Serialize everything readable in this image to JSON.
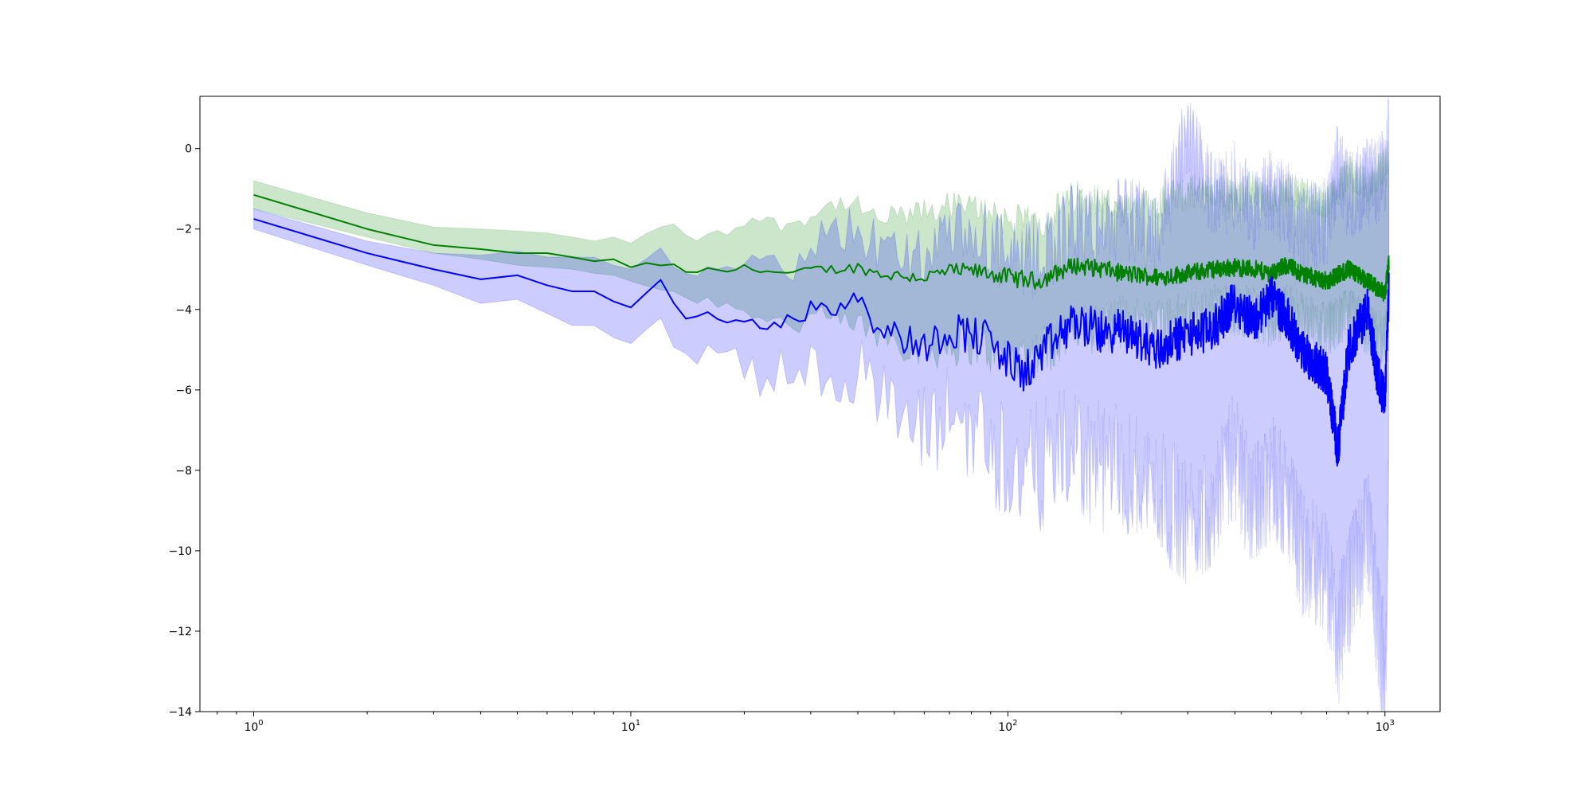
{
  "chart_data": {
    "type": "line",
    "title": "",
    "xlabel": "",
    "ylabel": "",
    "x_scale": "log",
    "xlim": [
      0.72,
      1400
    ],
    "ylim": [
      -14,
      1.3
    ],
    "grid": false,
    "legend": "none",
    "x_ticks": [
      {
        "value": 1,
        "base": "10",
        "exp": "0"
      },
      {
        "value": 10,
        "base": "10",
        "exp": "1"
      },
      {
        "value": 100,
        "base": "10",
        "exp": "2"
      },
      {
        "value": 1000,
        "base": "10",
        "exp": "3"
      }
    ],
    "y_ticks": [
      {
        "value": 0,
        "label": "0"
      },
      {
        "value": -2,
        "label": "−2"
      },
      {
        "value": -4,
        "label": "−4"
      },
      {
        "value": -6,
        "label": "−6"
      },
      {
        "value": -8,
        "label": "−8"
      },
      {
        "value": -10,
        "label": "−10"
      },
      {
        "value": -12,
        "label": "−12"
      },
      {
        "value": -14,
        "label": "−14"
      }
    ],
    "series": [
      {
        "color": "#008000",
        "band_color": "#008000",
        "band_opacity": 0.2,
        "x": [
          1,
          2,
          3,
          4,
          5,
          6,
          7,
          8,
          9,
          10,
          11,
          12,
          13,
          14,
          15,
          16,
          18,
          20,
          22,
          25,
          28,
          30,
          35,
          40,
          45,
          50,
          60,
          70,
          80,
          90,
          100,
          120,
          150,
          180,
          200,
          250,
          300,
          350,
          400,
          450,
          500,
          550,
          600,
          700,
          800,
          900,
          1000,
          1024
        ],
        "y": [
          -1.15,
          -2.0,
          -2.4,
          -2.5,
          -2.6,
          -2.6,
          -2.7,
          -2.8,
          -2.75,
          -2.95,
          -2.85,
          -2.9,
          -2.9,
          -3.05,
          -3.1,
          -3.0,
          -3.05,
          -2.95,
          -3.0,
          -3.1,
          -3.1,
          -3.0,
          -3.0,
          -2.95,
          -3.1,
          -3.15,
          -3.2,
          -3.05,
          -3.05,
          -3.1,
          -3.2,
          -3.3,
          -2.9,
          -3.0,
          -3.1,
          -3.2,
          -3.1,
          -3.0,
          -2.95,
          -3.0,
          -3.1,
          -2.9,
          -3.1,
          -3.3,
          -3.0,
          -3.3,
          -3.6,
          -2.8
        ],
        "band_lower": [
          -1.5,
          -2.2,
          -2.6,
          -2.75,
          -2.9,
          -2.95,
          -3.0,
          -3.1,
          -3.15,
          -3.3,
          -3.4,
          -3.5,
          -3.55,
          -3.7,
          -3.8,
          -3.75,
          -3.9,
          -4.0,
          -4.1,
          -4.3,
          -4.4,
          -4.2,
          -4.3,
          -4.4,
          -4.6,
          -4.7,
          -5.0,
          -4.9,
          -4.8,
          -5.0,
          -5.2,
          -5.1,
          -4.5,
          -4.4,
          -4.3,
          -4.3,
          -4.2,
          -4.0,
          -4.0,
          -4.1,
          -4.3,
          -4.0,
          -4.2,
          -4.5,
          -4.1,
          -4.5,
          -4.8,
          -3.9
        ],
        "band_upper": [
          -0.8,
          -1.6,
          -1.95,
          -2.0,
          -2.05,
          -2.1,
          -2.2,
          -2.3,
          -2.2,
          -2.35,
          -2.1,
          -1.95,
          -1.9,
          -2.2,
          -2.3,
          -2.05,
          -2.1,
          -1.8,
          -1.75,
          -1.9,
          -1.8,
          -1.65,
          -1.35,
          -1.45,
          -1.8,
          -1.7,
          -1.6,
          -1.4,
          -1.5,
          -1.5,
          -1.8,
          -1.9,
          -1.2,
          -1.3,
          -1.6,
          -1.3,
          -1.1,
          -1.0,
          -1.2,
          -0.95,
          -1.3,
          -1.0,
          -1.1,
          -1.4,
          -0.6,
          -0.9,
          -0.4,
          -0.1
        ]
      },
      {
        "color": "#0000ff",
        "band_color": "#0000ff",
        "band_opacity": 0.2,
        "x": [
          1,
          2,
          3,
          4,
          5,
          6,
          7,
          8,
          9,
          10,
          11,
          12,
          13,
          14,
          15,
          16,
          18,
          20,
          22,
          25,
          28,
          30,
          35,
          40,
          45,
          50,
          60,
          70,
          80,
          90,
          100,
          110,
          120,
          150,
          180,
          200,
          250,
          300,
          350,
          400,
          450,
          500,
          550,
          600,
          700,
          750,
          800,
          900,
          950,
          1000,
          1024
        ],
        "y": [
          -1.75,
          -2.6,
          -3.0,
          -3.25,
          -3.15,
          -3.4,
          -3.55,
          -3.55,
          -3.8,
          -3.95,
          -3.6,
          -3.25,
          -3.85,
          -4.2,
          -4.25,
          -4.1,
          -4.25,
          -4.15,
          -4.4,
          -4.3,
          -4.35,
          -3.85,
          -3.95,
          -3.6,
          -4.4,
          -4.6,
          -4.95,
          -4.5,
          -4.6,
          -4.8,
          -5.3,
          -5.6,
          -5.2,
          -4.3,
          -4.6,
          -4.5,
          -5.0,
          -4.6,
          -4.5,
          -3.8,
          -4.3,
          -3.7,
          -4.2,
          -5.0,
          -5.6,
          -7.5,
          -5.0,
          -4.0,
          -5.5,
          -6.3,
          -3.6
        ],
        "band_lower": [
          -2.0,
          -2.9,
          -3.4,
          -3.85,
          -3.75,
          -4.1,
          -4.4,
          -4.4,
          -4.7,
          -4.85,
          -4.5,
          -4.1,
          -4.8,
          -5.1,
          -5.2,
          -5.15,
          -5.35,
          -5.4,
          -5.75,
          -5.6,
          -5.6,
          -5.45,
          -5.65,
          -5.3,
          -6.3,
          -6.6,
          -7.2,
          -6.6,
          -6.9,
          -7.3,
          -7.8,
          -8.2,
          -7.9,
          -7.5,
          -8.0,
          -7.9,
          -8.5,
          -9.3,
          -8.8,
          -7.6,
          -9.0,
          -8.0,
          -8.8,
          -10.0,
          -10.5,
          -12.3,
          -11.0,
          -9.5,
          -11.5,
          -13.2,
          -8.7
        ],
        "band_upper": [
          -1.5,
          -2.3,
          -2.6,
          -2.65,
          -2.55,
          -2.7,
          -2.7,
          -2.7,
          -2.9,
          -3.0,
          -2.7,
          -2.4,
          -2.9,
          -3.2,
          -3.3,
          -3.05,
          -3.15,
          -2.9,
          -3.05,
          -2.85,
          -2.9,
          -2.3,
          -2.25,
          -1.9,
          -2.5,
          -2.6,
          -2.7,
          -2.3,
          -2.3,
          -2.3,
          -2.8,
          -3.0,
          -2.6,
          -1.9,
          -2.0,
          -1.7,
          -2.0,
          0.4,
          -1.3,
          -0.9,
          -1.5,
          -1.1,
          -1.4,
          -2.1,
          -1.8,
          -0.4,
          -1.2,
          -0.8,
          -0.8,
          -0.5,
          0.5
        ]
      }
    ]
  }
}
